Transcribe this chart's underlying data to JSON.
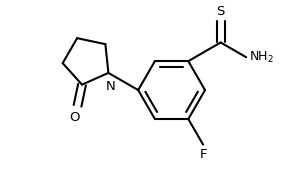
{
  "bg_color": "#ffffff",
  "line_color": "#000000",
  "lw": 1.5,
  "fig_width": 2.98,
  "fig_height": 1.76,
  "dpi": 100,
  "xlim": [
    0,
    2.98
  ],
  "ylim": [
    0,
    1.76
  ]
}
